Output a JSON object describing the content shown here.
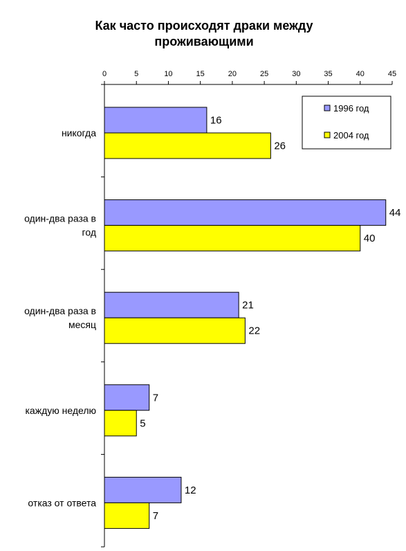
{
  "chart_data": {
    "type": "bar",
    "orientation": "horizontal",
    "title_lines": [
      "Как часто происходят драки между",
      "проживающими"
    ],
    "categories": [
      [
        "никогда"
      ],
      [
        "один-два раза в",
        "год"
      ],
      [
        "один-два раза в",
        "месяц"
      ],
      [
        "каждую неделю"
      ],
      [
        "отказ от ответа"
      ]
    ],
    "series": [
      {
        "name": "1996 год",
        "color": "#9999FF",
        "values": [
          16,
          44,
          21,
          7,
          12
        ]
      },
      {
        "name": "2004 год",
        "color": "#FFFF00",
        "values": [
          26,
          40,
          22,
          5,
          7
        ]
      }
    ],
    "xlim": [
      0,
      45
    ],
    "xticks": [
      0,
      5,
      10,
      15,
      20,
      25,
      30,
      35,
      40,
      45
    ],
    "axis_position": "top",
    "legend_position": "top-right",
    "grid": false
  }
}
